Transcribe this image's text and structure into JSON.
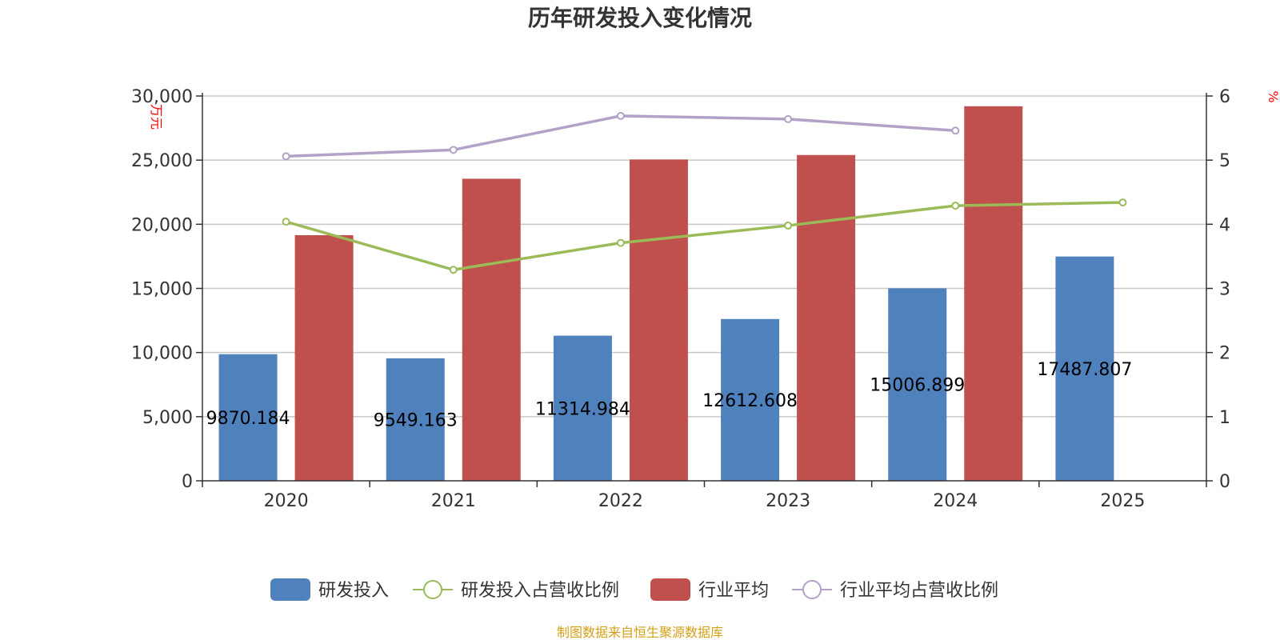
{
  "chart_data": {
    "type": "bar",
    "title": "历年研发投入变化情况",
    "categories": [
      "2020",
      "2021",
      "2022",
      "2023",
      "2024",
      "2025"
    ],
    "y_left": {
      "unit": "万元",
      "range": [
        0,
        30000
      ],
      "ticks": [
        {
          "value": 0,
          "label": "0"
        },
        {
          "value": 5000,
          "label": "5,000"
        },
        {
          "value": 10000,
          "label": "10,000"
        },
        {
          "value": 15000,
          "label": "15,000"
        },
        {
          "value": 20000,
          "label": "20,000"
        },
        {
          "value": 25000,
          "label": "25,000"
        },
        {
          "value": 30000,
          "label": "30,000"
        }
      ]
    },
    "y_right": {
      "unit": "%",
      "range": [
        0,
        6
      ],
      "ticks": [
        {
          "value": 0,
          "label": "0"
        },
        {
          "value": 1,
          "label": "1"
        },
        {
          "value": 2,
          "label": "2"
        },
        {
          "value": 3,
          "label": "3"
        },
        {
          "value": 4,
          "label": "4"
        },
        {
          "value": 5,
          "label": "5"
        },
        {
          "value": 6,
          "label": "6"
        }
      ]
    },
    "grid": true,
    "legend_position": "bottom",
    "series": [
      {
        "name": "研发投入",
        "kind": "bar",
        "axis": "left",
        "color": "#4f81bd",
        "values": [
          9870.184,
          9549.163,
          11314.984,
          12612.608,
          15006.899,
          17487.807
        ],
        "labels": [
          "9870.184",
          "9549.163",
          "11314.984",
          "12612.608",
          "15006.899",
          "17487.807"
        ]
      },
      {
        "name": "研发投入占营收比例",
        "kind": "line",
        "axis": "right",
        "color": "#9bbb59",
        "values": [
          4.04,
          3.29,
          3.71,
          3.98,
          4.29,
          4.34
        ]
      },
      {
        "name": "行业平均",
        "kind": "bar",
        "axis": "left",
        "color": "#c0504d",
        "values": [
          19150,
          23550,
          25050,
          25400,
          29200,
          null
        ]
      },
      {
        "name": "行业平均占营收比例",
        "kind": "line",
        "axis": "right",
        "color": "#b3a2c7",
        "values": [
          5.06,
          5.16,
          5.69,
          5.64,
          5.46,
          null
        ]
      }
    ],
    "source": "制图数据来自恒生聚源数据库"
  }
}
